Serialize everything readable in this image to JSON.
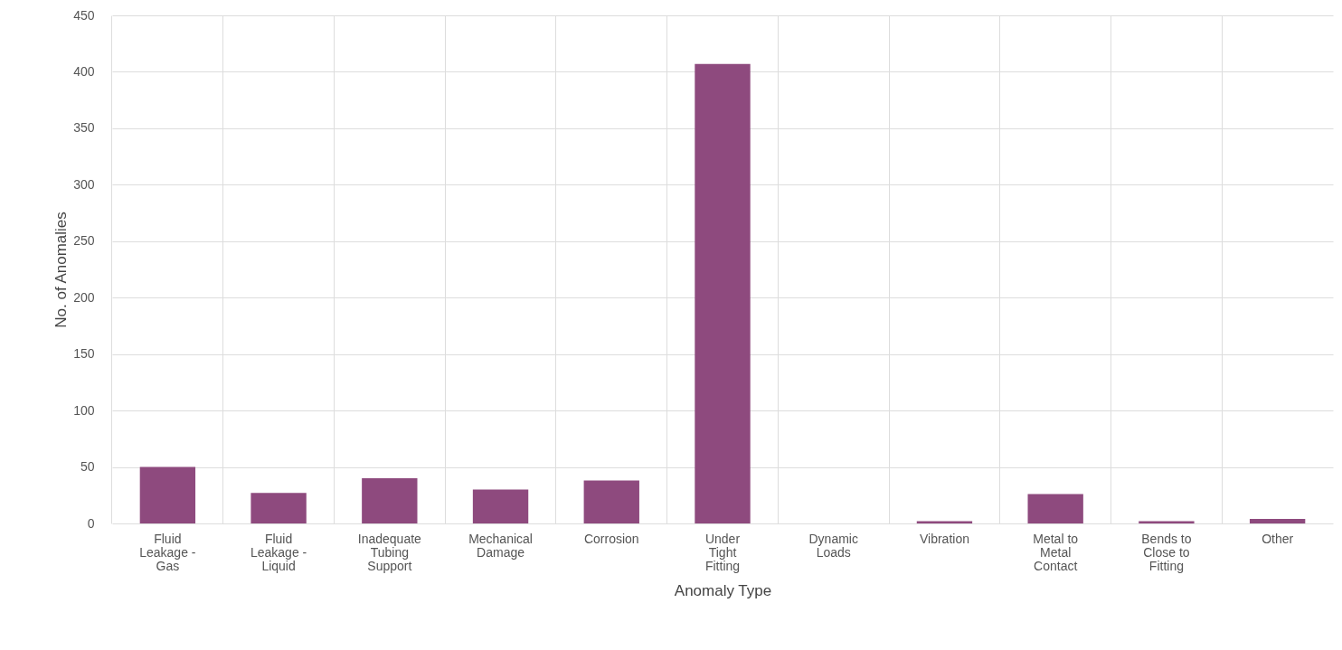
{
  "chart_data": {
    "type": "bar",
    "xlabel": "Anomaly Type",
    "ylabel": "No. of Anomalies",
    "categories": [
      "Fluid Leakage - Gas",
      "Fluid Leakage - Liquid",
      "Inadequate Tubing Support",
      "Mechanical Damage",
      "Corrosion",
      "Under Tight Fitting",
      "Dynamic Loads",
      "Vibration",
      "Metal to Metal Contact",
      "Bends to Close to Fitting",
      "Other"
    ],
    "values": [
      50,
      27,
      40,
      30,
      38,
      407,
      0,
      2,
      26,
      2,
      4
    ],
    "color": "#8e4a7e",
    "ylim": [
      0,
      450
    ],
    "yticks": [
      0,
      50,
      100,
      150,
      200,
      250,
      300,
      350,
      400,
      450
    ],
    "grid": true
  }
}
